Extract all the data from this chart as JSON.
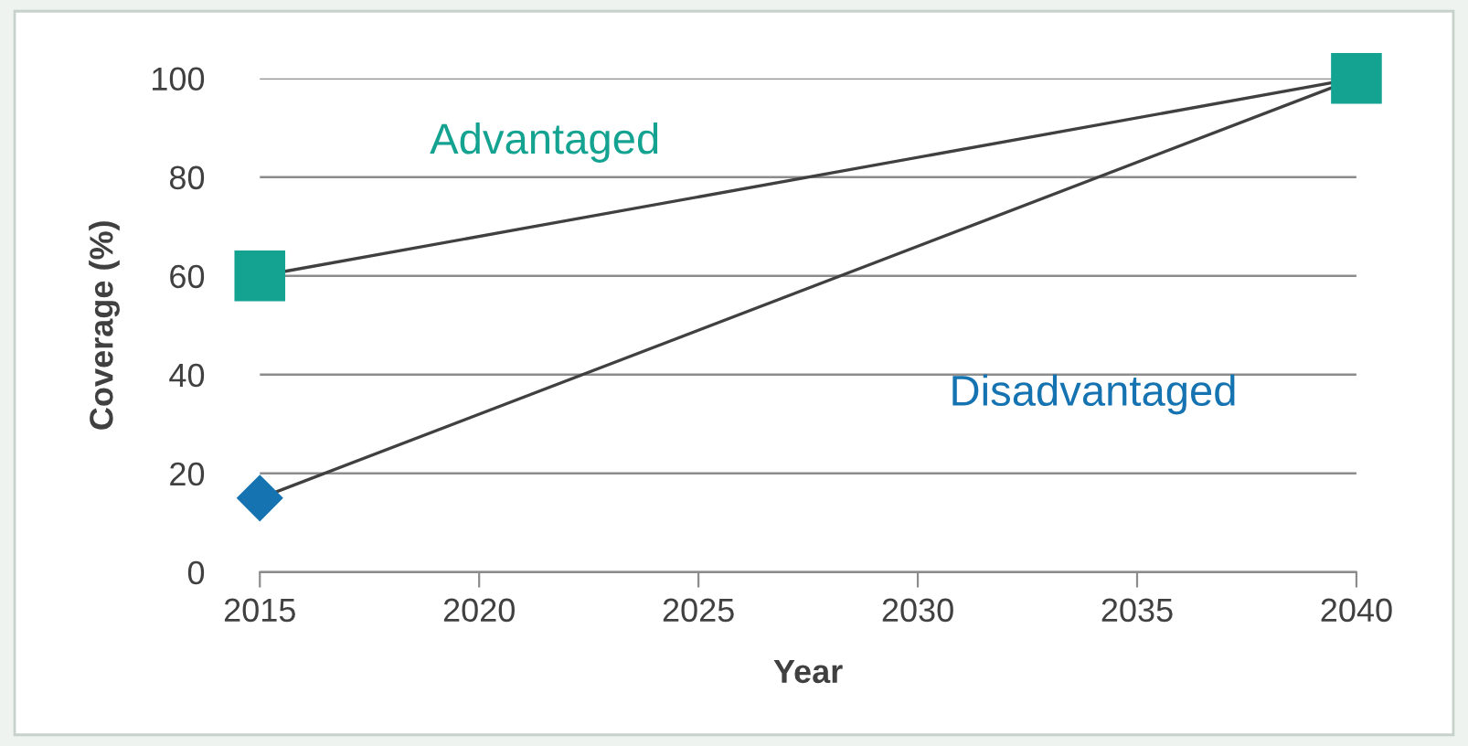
{
  "chart_data": {
    "type": "line",
    "xlabel": "Year",
    "ylabel": "Coverage (%)",
    "x": [
      2015,
      2040
    ],
    "series": [
      {
        "name": "Advantaged",
        "color": "#14a391",
        "marker": "square",
        "values": [
          60,
          100
        ]
      },
      {
        "name": "Disadvantaged",
        "color": "#1473b0",
        "marker": "diamond",
        "values": [
          15,
          100
        ]
      }
    ],
    "xlim": [
      2015,
      2040
    ],
    "xticks": [
      2015,
      2020,
      2025,
      2030,
      2035,
      2040
    ],
    "ylim": [
      0,
      100
    ],
    "yticks": [
      0,
      20,
      40,
      60,
      80,
      100
    ],
    "grid": "y",
    "legend": false
  }
}
